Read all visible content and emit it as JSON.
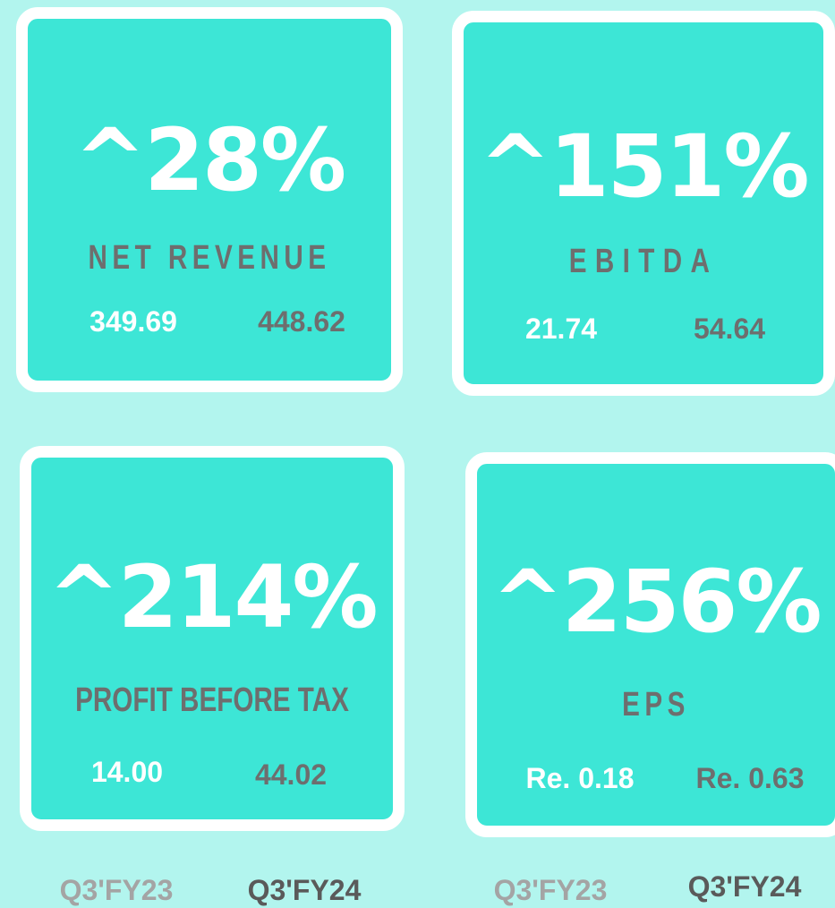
{
  "cards": [
    {
      "change": "^28%",
      "label": "NET REVENUE",
      "previous": "349.69",
      "current": "448.62"
    },
    {
      "change": "^151%",
      "label": "EBITDA",
      "previous": "21.74",
      "current": "54.64"
    },
    {
      "change": "^214%",
      "label": "PROFIT BEFORE TAX",
      "previous": "14.00",
      "current": "44.02"
    },
    {
      "change": "^256%",
      "label": "EPS",
      "previous": "Re. 0.18",
      "current": "Re. 0.63"
    }
  ],
  "legend": [
    {
      "previous": "Q3'FY23",
      "current": "Q3'FY24"
    },
    {
      "previous": "Q3'FY23",
      "current": "Q3'FY24"
    }
  ]
}
